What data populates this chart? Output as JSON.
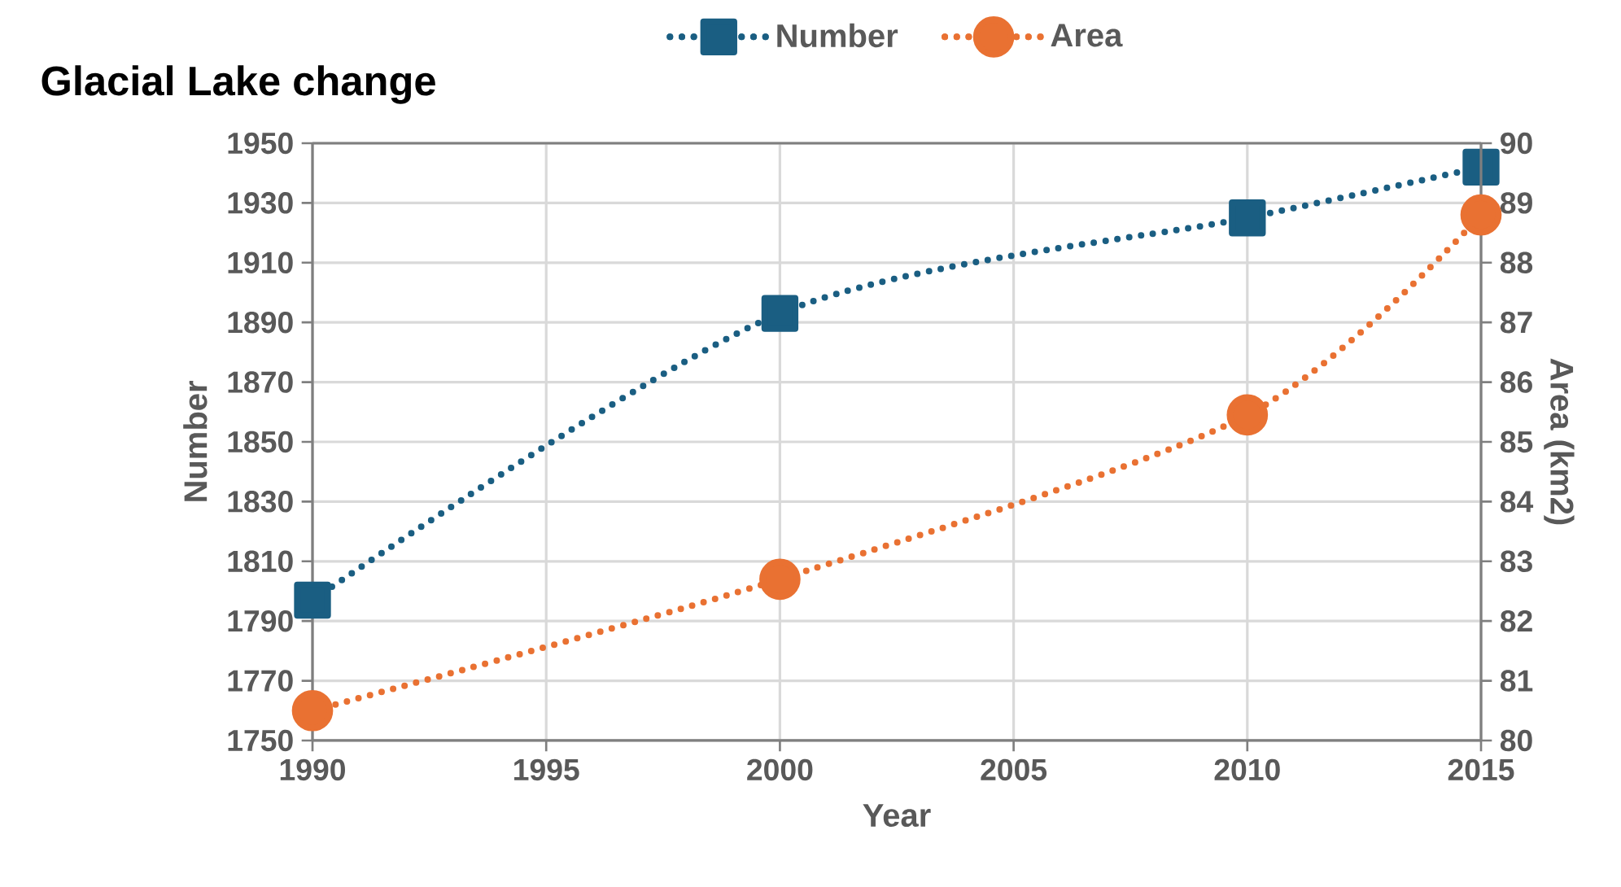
{
  "chart_data": {
    "type": "line",
    "title": "Glacial Lake change",
    "xlabel": "Year",
    "ylabel": "Number",
    "y2label": "Area (km2)",
    "x": [
      1990,
      2000,
      2010,
      2015
    ],
    "xlim": [
      1990,
      2015
    ],
    "xticks": [
      1990,
      1995,
      2000,
      2005,
      2010,
      2015
    ],
    "ylim": [
      1750,
      1950
    ],
    "yticks": [
      1750,
      1770,
      1790,
      1810,
      1830,
      1850,
      1870,
      1890,
      1910,
      1930,
      1950
    ],
    "y2lim": [
      80,
      90
    ],
    "y2ticks": [
      80,
      81,
      82,
      83,
      84,
      85,
      86,
      87,
      88,
      89,
      90
    ],
    "grid": true,
    "legend": "top",
    "series": [
      {
        "name": "Number",
        "color": "#1a5e82",
        "values": [
          1797,
          1893,
          1925,
          1942
        ],
        "marker": "square",
        "line_style": "dotted"
      },
      {
        "name": "Area",
        "color": "#e97132",
        "values": [
          80.5,
          82.7,
          85.45,
          88.8
        ],
        "axis": "y2",
        "marker": "circle",
        "line_style": "dotted"
      }
    ]
  }
}
